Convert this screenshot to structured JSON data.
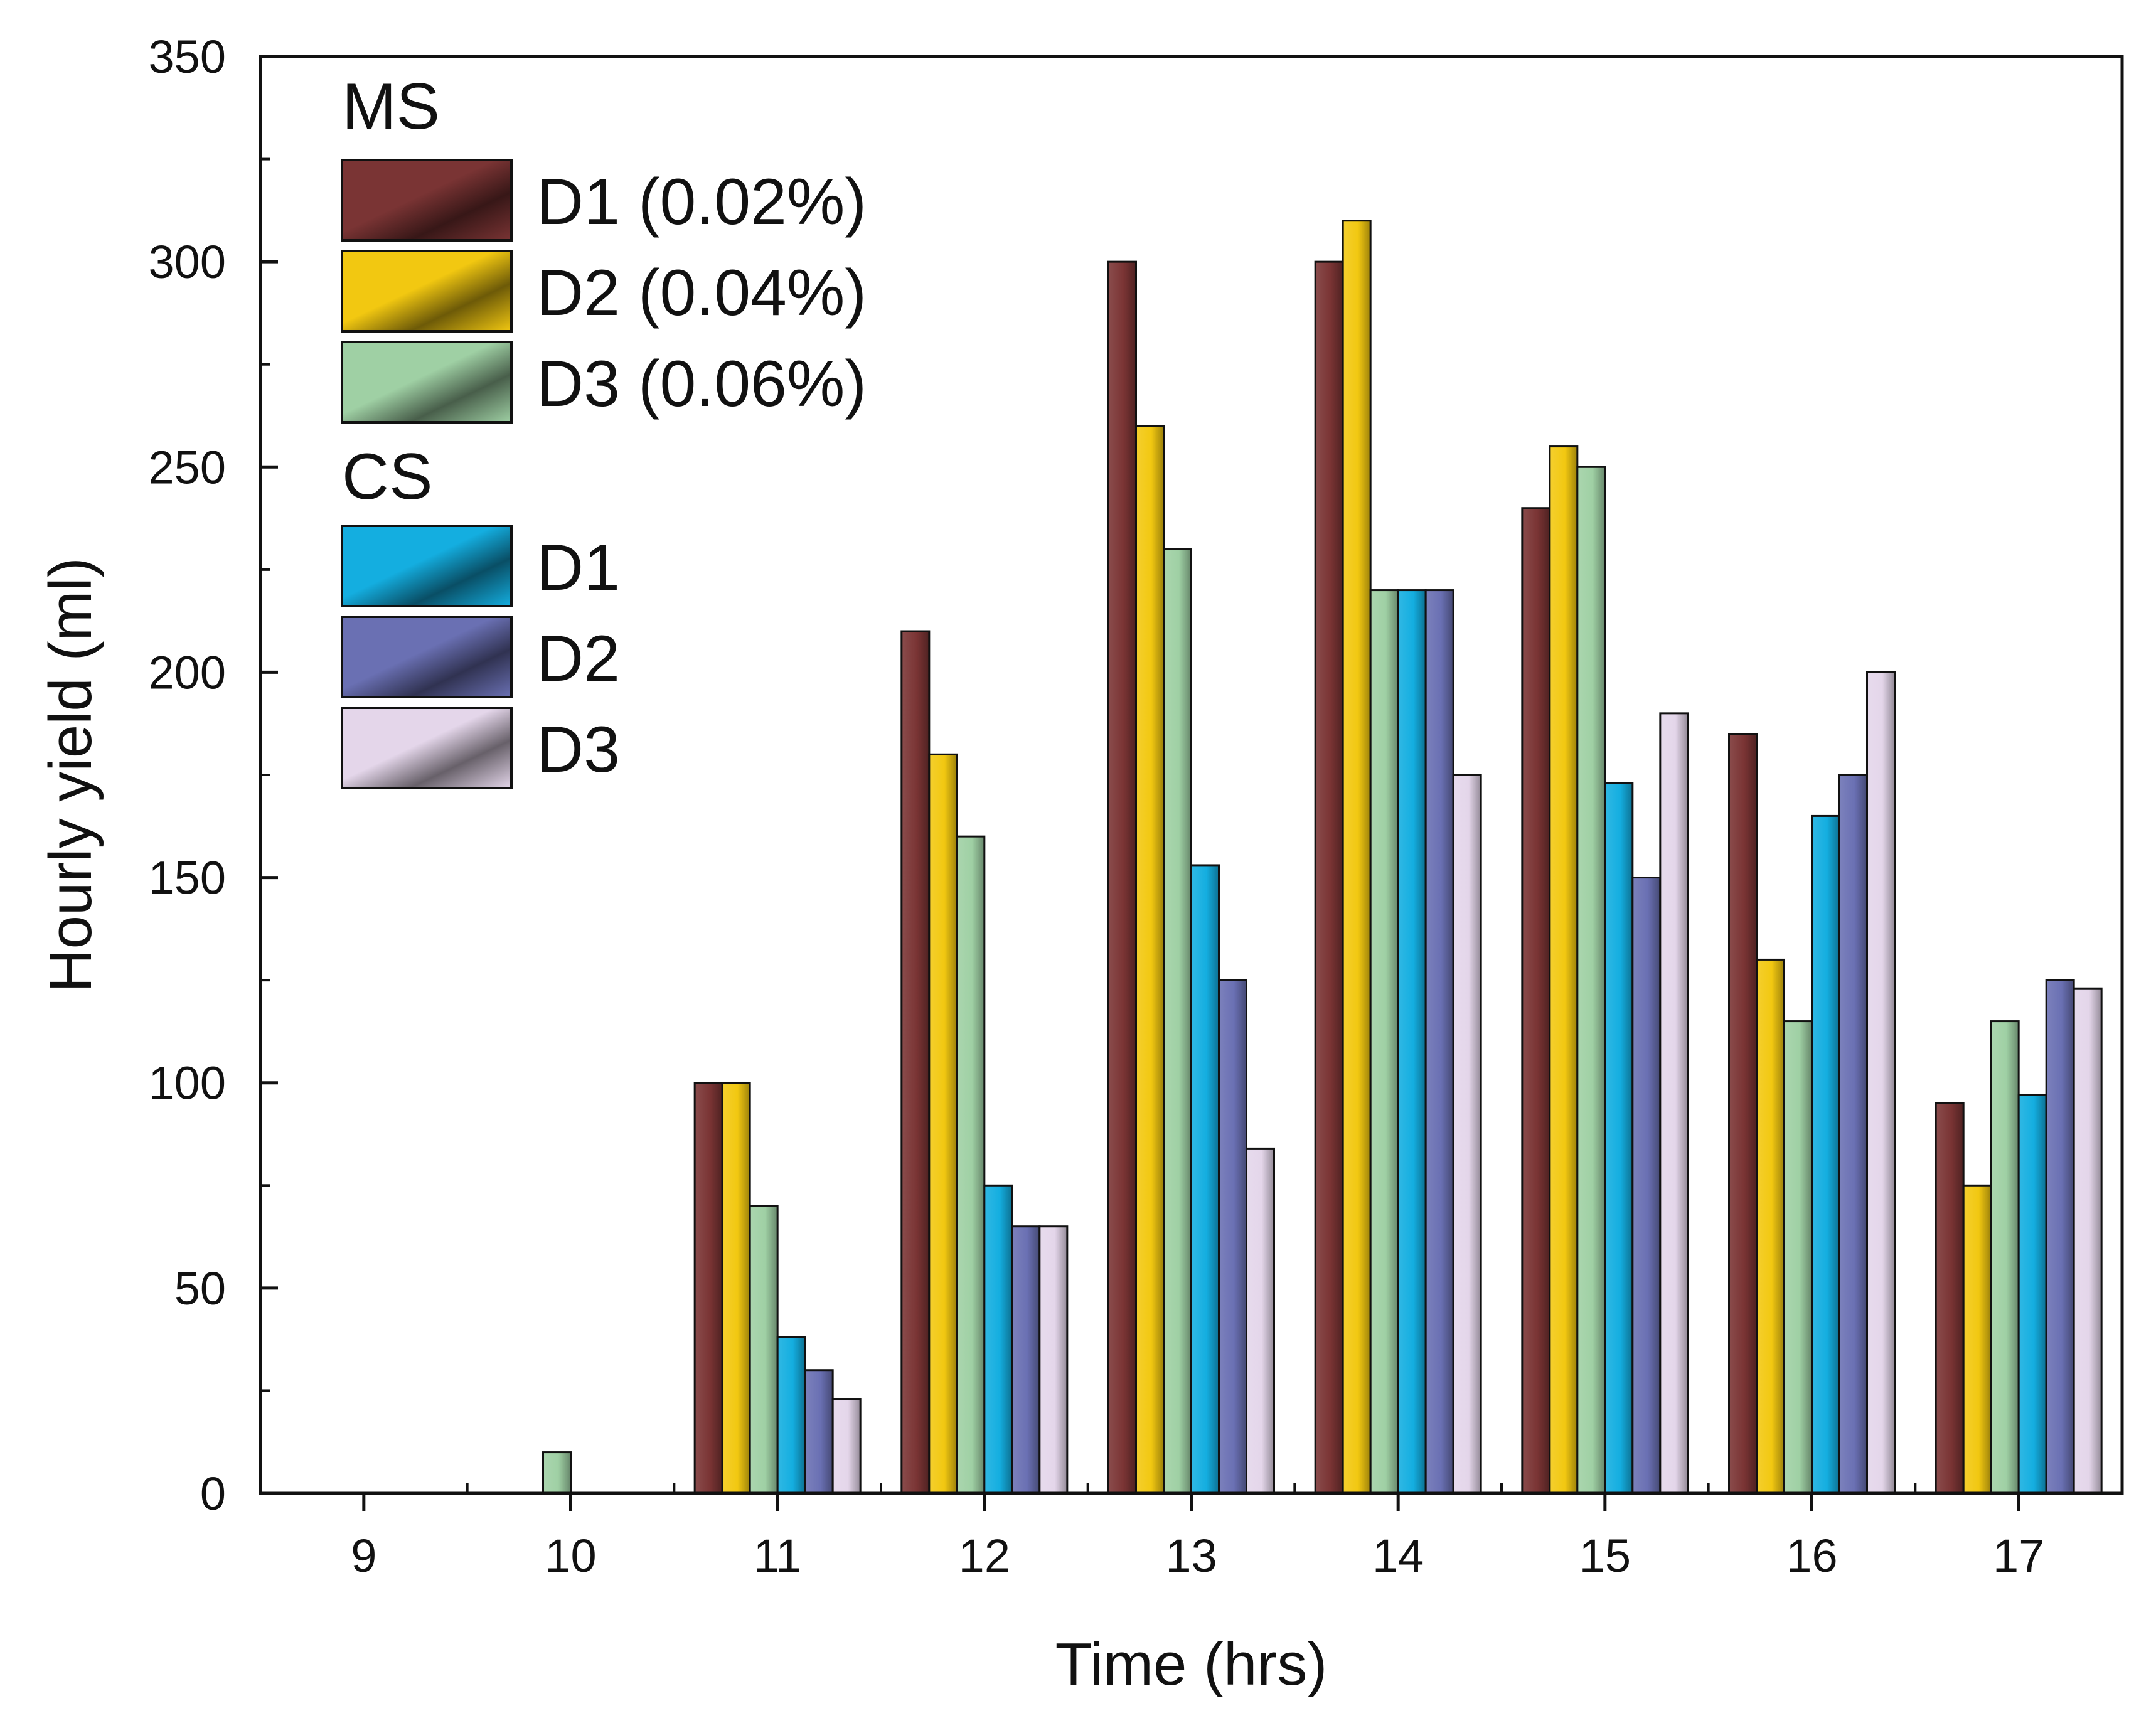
{
  "chart_data": {
    "type": "bar",
    "xlabel": "Time (hrs)",
    "ylabel": "Hourly yield (ml)",
    "ylim": [
      0,
      350
    ],
    "yticks": [
      0,
      50,
      100,
      150,
      200,
      250,
      300,
      350
    ],
    "categories": [
      "9",
      "10",
      "11",
      "12",
      "13",
      "14",
      "15",
      "16",
      "17"
    ],
    "legend_position": "top-left",
    "groups": [
      {
        "name": "MS"
      },
      {
        "name": "CS"
      }
    ],
    "series": [
      {
        "name": "D1 (0.02%)",
        "group": "MS",
        "color": "#7a3434",
        "values": [
          0,
          0,
          100,
          210,
          300,
          300,
          240,
          185,
          95
        ]
      },
      {
        "name": "D2 (0.04%)",
        "group": "MS",
        "color": "#f2c811",
        "values": [
          0,
          0,
          100,
          180,
          260,
          310,
          255,
          130,
          75
        ]
      },
      {
        "name": "D3 (0.06%)",
        "group": "MS",
        "color": "#9fd0a4",
        "values": [
          0,
          10,
          70,
          160,
          230,
          220,
          250,
          115,
          115
        ]
      },
      {
        "name": "D1",
        "group": "CS",
        "color": "#14aee0",
        "values": [
          0,
          0,
          38,
          75,
          153,
          220,
          173,
          165,
          97
        ]
      },
      {
        "name": "D2",
        "group": "CS",
        "color": "#6a70b3",
        "values": [
          0,
          0,
          30,
          65,
          125,
          220,
          150,
          175,
          125
        ]
      },
      {
        "name": "D3",
        "group": "CS",
        "color": "#e4d6ea",
        "values": [
          0,
          0,
          23,
          65,
          84,
          175,
          190,
          200,
          123
        ]
      }
    ]
  }
}
